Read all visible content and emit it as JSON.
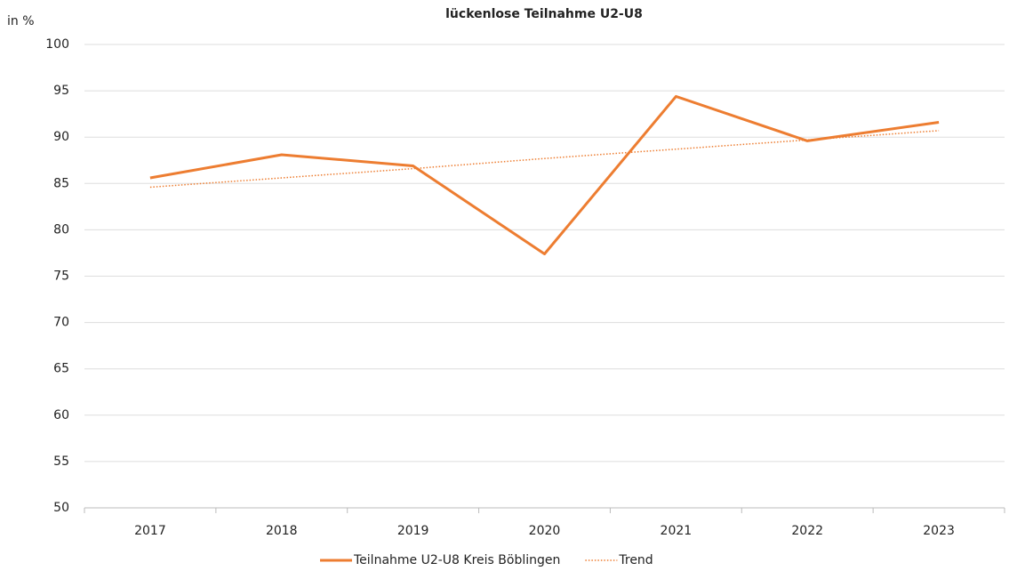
{
  "chart_data": {
    "type": "line",
    "title": "lückenlose Teilnahme U2-U8",
    "y_label": "in %",
    "categories": [
      "2017",
      "2018",
      "2019",
      "2020",
      "2021",
      "2022",
      "2023"
    ],
    "series": [
      {
        "name": "Teilnahme U2-U8 Kreis Böblingen",
        "color": "#ed7d31",
        "style": "solid",
        "values": [
          85.6,
          88.1,
          86.9,
          77.4,
          94.4,
          89.6,
          91.6
        ]
      },
      {
        "name": "Trend",
        "color": "#ed7d31",
        "style": "dotted",
        "values": [
          84.6,
          85.6,
          86.6,
          87.7,
          88.7,
          89.7,
          90.7
        ]
      }
    ],
    "ylim": [
      50,
      100
    ],
    "yticks": [
      50,
      55,
      60,
      65,
      70,
      75,
      80,
      85,
      90,
      95,
      100
    ],
    "grid": true,
    "legend": "bottom"
  }
}
